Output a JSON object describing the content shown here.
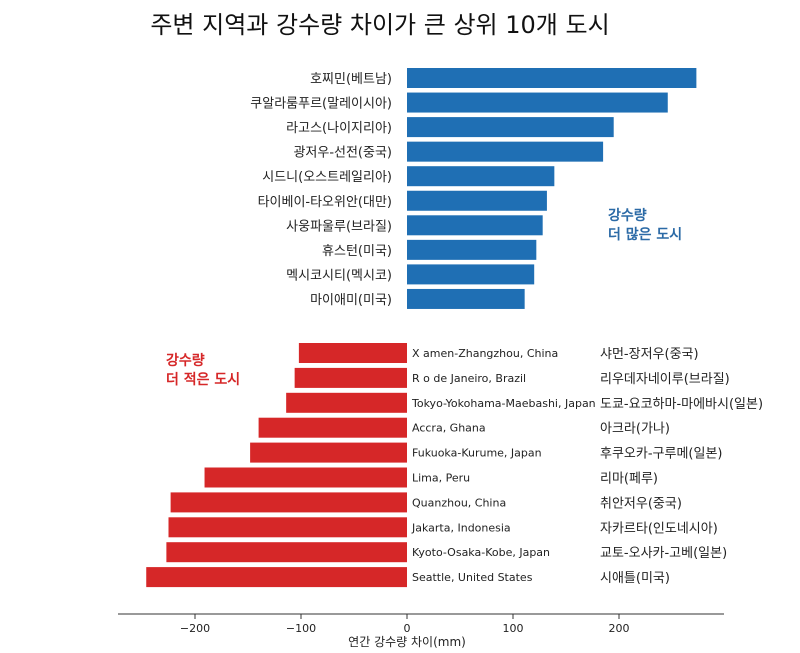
{
  "chart_data": {
    "type": "bar",
    "orientation": "horizontal",
    "title": "주변 지역과 강수량 차이가 큰 상위 10개 도시",
    "xlabel": "연간 강수량 차이(mm)",
    "ylabel": "",
    "xlim": [
      -270,
      300
    ],
    "xticks": [
      -200,
      -100,
      0,
      100,
      200
    ],
    "grid": false,
    "series": [
      {
        "key": "wetter",
        "color": "#1f6fb4",
        "annotation": [
          "강수량",
          "더 많은 도시"
        ],
        "categories": [
          "호찌민(베트남)",
          "쿠알라룸푸르(말레이시아)",
          "라고스(나이지리아)",
          "광저우-선전(중국)",
          "시드니(오스트레일리아)",
          "타이베이-타오위안(대만)",
          "사웅파울루(브라질)",
          "휴스턴(미국)",
          "멕시코시티(멕시코)",
          "마이애미(미국)"
        ],
        "values": [
          273,
          246,
          195,
          185,
          139,
          132,
          128,
          122,
          120,
          111
        ]
      },
      {
        "key": "drier",
        "color": "#d62728",
        "annotation": [
          "강수량",
          "더 적은 도시"
        ],
        "categories": [
          "X amen-Zhangzhou, China",
          "R o de Janeiro, Brazil",
          "Tokyo-Yokohama-Maebashi, Japan",
          "Accra, Ghana",
          "Fukuoka-Kurume, Japan",
          "Lima, Peru",
          "Quanzhou, China",
          "Jakarta, Indonesia",
          "Kyoto-Osaka-Kobe, Japan",
          "Seattle, United States"
        ],
        "categories_ko": [
          "샤먼-장저우(중국)",
          "리우데자네이루(브라질)",
          "도쿄-요코하마-마에바시(일본)",
          "아크라(가나)",
          "후쿠오카-구루메(일본)",
          "리마(페루)",
          "취안저우(중국)",
          "자카르타(인도네시아)",
          "교토-오사카-고베(일본)",
          "시애틀(미국)"
        ],
        "values": [
          -102,
          -106,
          -114,
          -140,
          -148,
          -191,
          -223,
          -225,
          -227,
          -246
        ]
      }
    ]
  }
}
